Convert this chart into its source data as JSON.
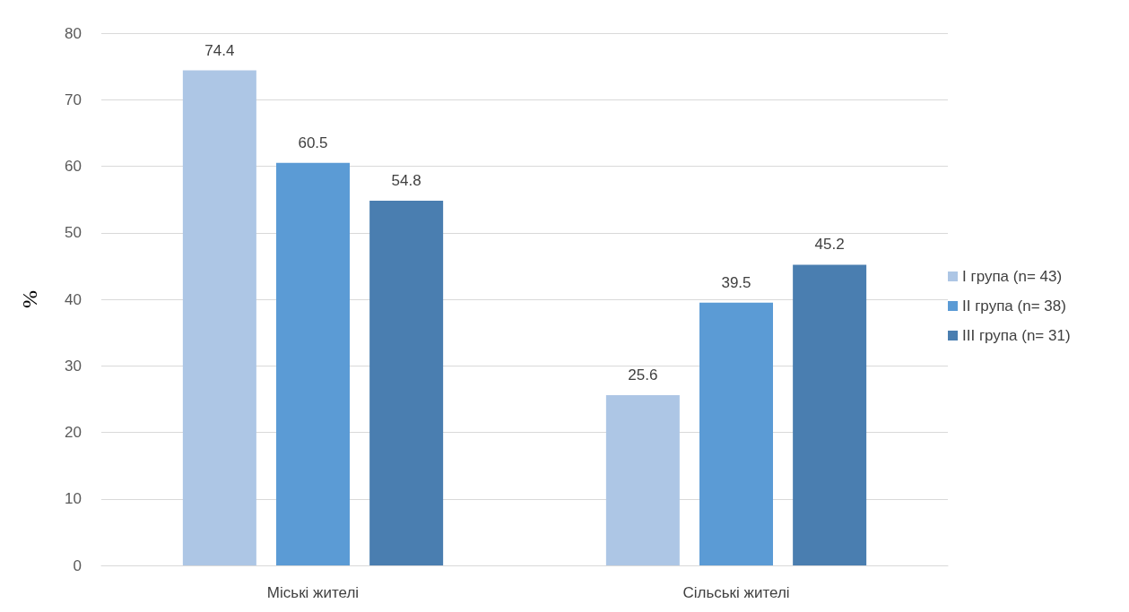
{
  "chart_data": {
    "type": "bar",
    "ylabel": "%",
    "categories": [
      "Міські жителі",
      "Сільські жителі"
    ],
    "series": [
      {
        "name": "I група (n= 43)",
        "color": "#adc6e5",
        "values": [
          74.4,
          25.6
        ]
      },
      {
        "name": "II група (n= 38)",
        "color": "#5b9bd5",
        "values": [
          60.5,
          39.5
        ]
      },
      {
        "name": "III група (n= 31)",
        "color": "#4a7eb0",
        "values": [
          54.8,
          45.2
        ]
      }
    ],
    "ylim": [
      0,
      80
    ],
    "yticks": [
      0,
      10,
      20,
      30,
      40,
      50,
      60,
      70,
      80
    ],
    "grid": "y",
    "legend": "right",
    "data_labels": true
  }
}
